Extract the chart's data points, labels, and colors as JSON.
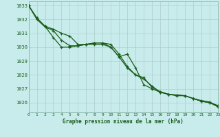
{
  "title": "Graphe pression niveau de la mer (hPa)",
  "bg_color": "#c8ecec",
  "grid_color": "#b0cccc",
  "line_color": "#1a5c1a",
  "xlim": [
    0,
    23
  ],
  "ylim": [
    1025.3,
    1033.3
  ],
  "yticks": [
    1026,
    1027,
    1028,
    1029,
    1030,
    1031,
    1032,
    1033
  ],
  "xticks": [
    0,
    1,
    2,
    3,
    4,
    5,
    6,
    7,
    8,
    9,
    10,
    11,
    12,
    13,
    14,
    15,
    16,
    17,
    18,
    19,
    20,
    21,
    22,
    23
  ],
  "series": [
    {
      "x": [
        0,
        1,
        2,
        3,
        4,
        5,
        6,
        7,
        8,
        9,
        10,
        11,
        12,
        13,
        14,
        15,
        16,
        17,
        18,
        19,
        20,
        21,
        22,
        23
      ],
      "y": [
        1033.0,
        1032.1,
        1031.5,
        1031.3,
        1031.0,
        1030.8,
        1030.2,
        1030.2,
        1030.3,
        1030.3,
        1030.2,
        1029.5,
        1028.6,
        1028.0,
        1027.8,
        1027.1,
        1026.8,
        1026.6,
        1026.5,
        1026.5,
        1026.3,
        1026.1,
        1026.0,
        1025.8
      ]
    },
    {
      "x": [
        0,
        1,
        2,
        3,
        4,
        5,
        6,
        7,
        8,
        9,
        10,
        11,
        12,
        13,
        14,
        15,
        16,
        17,
        18,
        19,
        20,
        21,
        22,
        23
      ],
      "y": [
        1033.0,
        1032.0,
        1031.45,
        1031.2,
        1030.5,
        1030.1,
        1030.1,
        1030.2,
        1030.3,
        1030.3,
        1030.0,
        1029.3,
        1028.5,
        1028.0,
        1027.7,
        1027.2,
        1026.75,
        1026.6,
        1026.55,
        1026.5,
        1026.3,
        1026.15,
        1026.05,
        1025.75
      ]
    },
    {
      "x": [
        0,
        1,
        2,
        3,
        4,
        5,
        6,
        7,
        8,
        9,
        10,
        11,
        12,
        13,
        14,
        15,
        16,
        17,
        18,
        19,
        20,
        21,
        22,
        23
      ],
      "y": [
        1033.0,
        1032.1,
        1031.5,
        1030.7,
        1030.0,
        1030.0,
        1030.1,
        1030.2,
        1030.2,
        1030.2,
        1030.0,
        1029.3,
        1029.5,
        1028.5,
        1027.3,
        1027.0,
        1026.75,
        1026.6,
        1026.55,
        1026.5,
        1026.3,
        1026.1,
        1026.0,
        1025.7
      ]
    }
  ]
}
